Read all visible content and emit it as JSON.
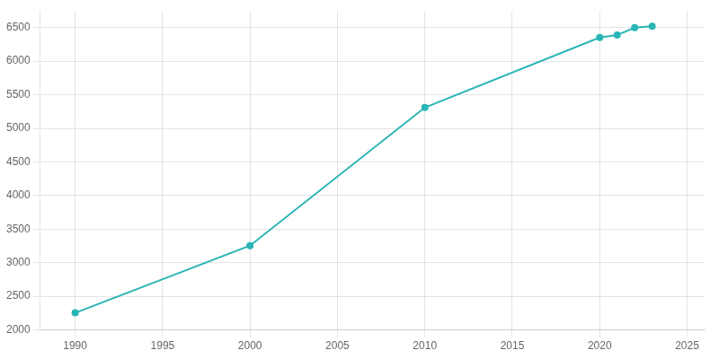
{
  "chart_data": {
    "type": "line",
    "x": [
      1990,
      2000,
      2010,
      2020,
      2021,
      2022,
      2023
    ],
    "values": [
      2254,
      3254,
      5310,
      6352,
      6388,
      6500,
      6520
    ],
    "color": "#2ab5b5",
    "marker": "circle",
    "xlim": [
      1988,
      2026
    ],
    "ylim": [
      2000,
      6750
    ],
    "xticks": [
      1990,
      1995,
      2000,
      2005,
      2010,
      2015,
      2020,
      2025
    ],
    "yticks": [
      2000,
      2500,
      3000,
      3500,
      4000,
      4500,
      5000,
      5500,
      6000,
      6500
    ],
    "grid": true
  }
}
